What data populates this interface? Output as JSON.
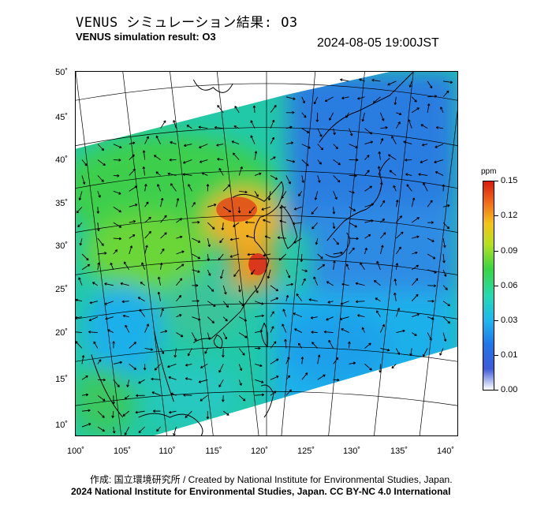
{
  "header": {
    "title_jp": "VENUS シミュレーション結果: O3",
    "title_en": "VENUS simulation result: O3",
    "timestamp": "2024-08-05 19:00JST"
  },
  "map": {
    "lat_labels": [
      "50˚",
      "45˚",
      "40˚",
      "35˚",
      "30˚",
      "25˚",
      "20˚",
      "15˚",
      "10˚"
    ],
    "lon_labels": [
      "100˚",
      "105˚",
      "110˚",
      "115˚",
      "120˚",
      "125˚",
      "130˚",
      "135˚",
      "140˚"
    ]
  },
  "colorbar": {
    "unit": "ppm",
    "ticks": [
      "0.15",
      "0.12",
      "0.09",
      "0.06",
      "0.03",
      "0.01",
      "0.00"
    ]
  },
  "footer": {
    "credit": "作成: 国立環境研究所 / Created by National Institute for Environmental Studies, Japan.",
    "license": "2024 National Institute for Environmental Studies, Japan. CC BY-NC 4.0 International"
  }
}
